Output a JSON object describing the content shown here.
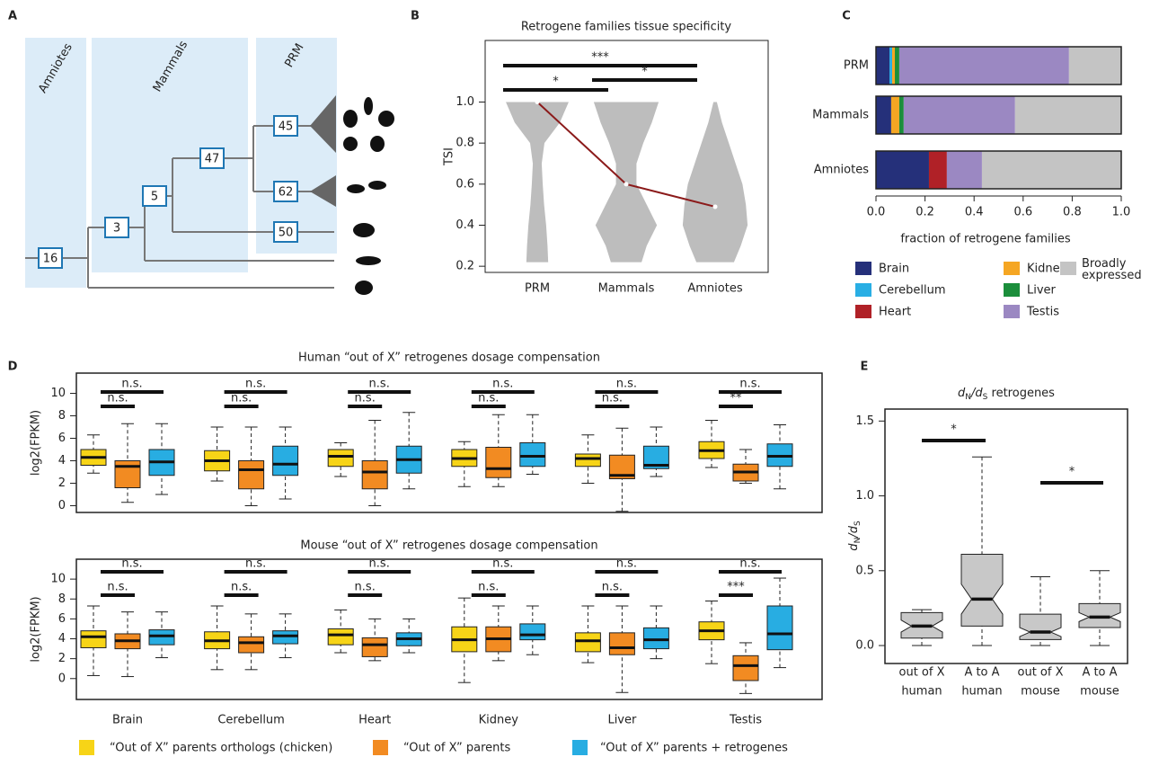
{
  "panel_labels": [
    "A",
    "B",
    "C",
    "D",
    "E"
  ],
  "tree": {
    "clades": [
      "Amniotes",
      "Mammals",
      "PRM"
    ],
    "nodes": [
      16,
      3,
      5,
      47,
      45,
      62,
      50
    ]
  },
  "chart_data": [
    {
      "type": "violin",
      "title": "Retrogene families tissue specificity",
      "ylabel": "TSI",
      "categories": [
        "PRM",
        "Mammals",
        "Amniotes"
      ],
      "density_y": [
        0.22,
        0.3,
        0.4,
        0.5,
        0.6,
        0.7,
        0.8,
        0.9,
        1.0
      ],
      "densities": [
        [
          0.32,
          0.3,
          0.26,
          0.2,
          0.16,
          0.13,
          0.21,
          0.66,
          0.92
        ],
        [
          0.45,
          0.6,
          0.9,
          0.6,
          0.3,
          0.3,
          0.5,
          0.75,
          0.95
        ],
        [
          0.55,
          0.75,
          0.95,
          0.9,
          0.8,
          0.6,
          0.4,
          0.2,
          0.05
        ]
      ],
      "medians": [
        1.0,
        0.6,
        0.49
      ],
      "color": "#bdbdbd",
      "median_color": "#8b1a1a",
      "ylim": [
        0.17,
        1.3
      ],
      "yticks": [
        0.2,
        0.4,
        0.6,
        0.8,
        {
          "value": 1.0,
          "label": "1.0"
        }
      ],
      "significance": [
        {
          "between": [
            0,
            2
          ],
          "label": "***"
        },
        {
          "between": [
            0,
            1
          ],
          "label": "*"
        },
        {
          "between": [
            1,
            2
          ],
          "label": "*"
        }
      ]
    },
    {
      "type": "stacked_barh",
      "xlabel": "fraction of retrogene families",
      "categories": [
        "PRM",
        "Mammals",
        "Amniotes"
      ],
      "series": [
        {
          "name": "Brain",
          "color": "#25307a",
          "values": [
            0.055,
            0.062,
            0.216
          ]
        },
        {
          "name": "Cerebellum",
          "color": "#29aee4",
          "values": [
            0.011,
            0,
            0
          ]
        },
        {
          "name": "Heart",
          "color": "#b02127",
          "values": [
            0,
            0,
            0.073
          ]
        },
        {
          "name": "Kidney",
          "color": "#f5a623",
          "values": [
            0.011,
            0.033,
            0
          ]
        },
        {
          "name": "Liver",
          "color": "#1b8e3b",
          "values": [
            0.018,
            0.018,
            0
          ]
        },
        {
          "name": "Testis",
          "color": "#9b88c2",
          "values": [
            0.692,
            0.454,
            0.143
          ]
        },
        {
          "name": "Broadly expressed",
          "color": "#c4c4c4",
          "values": [
            0.213,
            0.433,
            0.568
          ]
        }
      ],
      "xlim": [
        0,
        1
      ],
      "xticks": [
        {
          "value": 0,
          "label": "0.0"
        },
        0.2,
        0.4,
        0.6,
        0.8,
        {
          "value": 1,
          "label": "1.0"
        }
      ]
    },
    {
      "type": "box",
      "categories": [
        "Brain",
        "Cerebellum",
        "Heart",
        "Kidney",
        "Liver",
        "Testis"
      ],
      "series": [
        {
          "name": "“Out of X” parents orthologs (chicken)",
          "color": "#f7d417"
        },
        {
          "name": "“Out of X” parents",
          "color": "#f28b22"
        },
        {
          "name": "“Out of X” parents + retrogenes",
          "color": "#28ade2"
        }
      ],
      "panels": [
        {
          "title": "Human “out of X” retrogenes dosage compensation",
          "ylabel": "log2(FPKM)",
          "ylim": [
            -0.6,
            11.8
          ],
          "yticks": [
            0,
            2,
            4,
            6,
            8,
            10
          ],
          "stats": [
            [
              [
                2.9,
                3.6,
                4.3,
                5.0,
                6.3
              ],
              [
                2.2,
                3.1,
                4.0,
                4.9,
                7.0
              ],
              [
                2.6,
                3.5,
                4.4,
                5.0,
                5.6
              ],
              [
                1.7,
                3.5,
                4.2,
                5.0,
                5.7
              ],
              [
                2.0,
                3.5,
                4.2,
                4.6,
                6.3
              ],
              [
                3.4,
                4.2,
                4.9,
                5.7,
                7.6
              ]
            ],
            [
              [
                0.3,
                1.6,
                3.5,
                4.0,
                7.3
              ],
              [
                0.0,
                1.5,
                3.2,
                4.0,
                7.0
              ],
              [
                0.0,
                1.5,
                3.0,
                4.0,
                7.6
              ],
              [
                1.7,
                2.5,
                3.3,
                5.2,
                8.1
              ],
              [
                -0.5,
                2.4,
                2.7,
                4.5,
                6.9
              ],
              [
                2.0,
                2.2,
                3.0,
                3.7,
                5.0
              ]
            ],
            [
              [
                1.0,
                2.7,
                3.9,
                5.0,
                7.3
              ],
              [
                0.6,
                2.7,
                3.7,
                5.3,
                7.0
              ],
              [
                1.5,
                2.9,
                4.1,
                5.3,
                8.3
              ],
              [
                2.8,
                3.5,
                4.4,
                5.6,
                8.1
              ],
              [
                2.6,
                3.3,
                3.6,
                5.3,
                7.0
              ],
              [
                1.5,
                3.5,
                4.4,
                5.5,
                7.2
              ]
            ]
          ],
          "significance": [
            [
              "n.s.",
              "n.s."
            ],
            [
              "n.s.",
              "n.s."
            ],
            [
              "n.s.",
              "n.s."
            ],
            [
              "n.s.",
              "n.s."
            ],
            [
              "n.s.",
              "n.s."
            ],
            [
              "**",
              "n.s."
            ]
          ]
        },
        {
          "title": "Mouse “out of X” retrogenes dosage compensation",
          "ylabel": "log2(FPKM)",
          "ylim": [
            -2.1,
            12.0
          ],
          "yticks": [
            0,
            2,
            4,
            6,
            8,
            10
          ],
          "stats": [
            [
              [
                0.3,
                3.1,
                4.2,
                4.8,
                7.3
              ],
              [
                0.9,
                3.0,
                3.8,
                4.7,
                7.3
              ],
              [
                2.6,
                3.4,
                4.4,
                5.0,
                6.9
              ],
              [
                -0.4,
                2.7,
                3.9,
                5.2,
                8.1
              ],
              [
                1.6,
                2.7,
                3.8,
                4.6,
                7.3
              ],
              [
                1.5,
                3.9,
                4.8,
                5.7,
                7.8
              ]
            ],
            [
              [
                0.2,
                3.0,
                3.8,
                4.5,
                6.7
              ],
              [
                0.9,
                2.6,
                3.6,
                4.2,
                6.5
              ],
              [
                1.8,
                2.2,
                3.4,
                4.1,
                6.0
              ],
              [
                1.8,
                2.7,
                4.0,
                5.2,
                7.3
              ],
              [
                -1.4,
                2.4,
                3.1,
                4.6,
                7.3
              ],
              [
                -1.5,
                -0.2,
                1.3,
                2.3,
                3.6
              ]
            ],
            [
              [
                2.1,
                3.4,
                4.3,
                4.9,
                6.7
              ],
              [
                2.1,
                3.5,
                4.3,
                4.8,
                6.5
              ],
              [
                2.6,
                3.3,
                4.0,
                4.6,
                6.0
              ],
              [
                2.4,
                3.9,
                4.4,
                5.5,
                7.3
              ],
              [
                2.0,
                3.0,
                3.9,
                5.1,
                7.3
              ],
              [
                1.1,
                2.9,
                4.5,
                7.3,
                10.1
              ]
            ]
          ],
          "significance": [
            [
              "n.s.",
              "n.s."
            ],
            [
              "n.s.",
              "n.s."
            ],
            [
              "n.s.",
              "n.s."
            ],
            [
              "n.s.",
              "n.s."
            ],
            [
              "n.s.",
              "n.s."
            ],
            [
              "***",
              "n.s."
            ]
          ]
        }
      ]
    },
    {
      "type": "notched_box",
      "title": [
        "d",
        "N",
        "/d",
        "S",
        " retrogenes"
      ],
      "ylabel": [
        "d",
        "N",
        "/d",
        "S"
      ],
      "categories": [
        [
          "out of X",
          "human"
        ],
        [
          "A to A",
          "human"
        ],
        [
          "out of X",
          "mouse"
        ],
        [
          "A to A",
          "mouse"
        ]
      ],
      "stats": [
        [
          0.0,
          0.05,
          0.13,
          0.22,
          0.24
        ],
        [
          0.0,
          0.13,
          0.31,
          0.61,
          1.26
        ],
        [
          0.0,
          0.04,
          0.09,
          0.21,
          0.46
        ],
        [
          0.0,
          0.12,
          0.19,
          0.28,
          0.5
        ]
      ],
      "notches": [
        [
          0.09,
          0.17
        ],
        [
          0.21,
          0.41
        ],
        [
          0.06,
          0.12
        ],
        [
          0.16,
          0.22
        ]
      ],
      "color": "#c8c8c8",
      "ylim": [
        -0.12,
        1.58
      ],
      "yticks": [
        {
          "value": 0,
          "label": "0.0"
        },
        0.5,
        {
          "value": 1,
          "label": "1.0"
        },
        1.5
      ],
      "significance": [
        {
          "between": [
            0,
            1
          ],
          "label": "*"
        },
        {
          "between": [
            2,
            3
          ],
          "label": "*"
        }
      ]
    }
  ]
}
